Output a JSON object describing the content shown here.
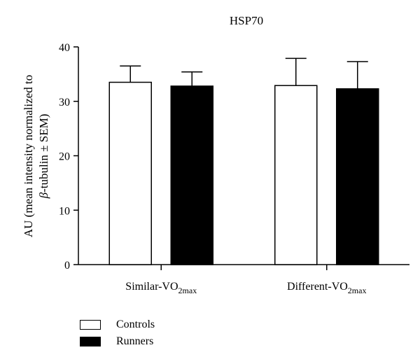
{
  "chart_data": {
    "type": "bar",
    "title": "HSP70",
    "ylabel_line1": "AU (mean intensity normalized to",
    "ylabel_line2_prefix": "β",
    "ylabel_line2_rest": "-tubulin ± SEM)",
    "ylim": [
      0,
      40
    ],
    "yticks": [
      0,
      10,
      20,
      30,
      40
    ],
    "categories": [
      {
        "base": "Similar-VO",
        "sub": "2max"
      },
      {
        "base": "Different-VO",
        "sub": "2max"
      }
    ],
    "series": [
      {
        "name": "Controls",
        "color": "#ffffff",
        "values": [
          33.5,
          32.9
        ],
        "errors": [
          3.0,
          5.0
        ]
      },
      {
        "name": "Runners",
        "color": "#000000",
        "values": [
          32.8,
          32.3
        ],
        "errors": [
          2.6,
          5.0
        ]
      }
    ],
    "grid": false,
    "legend_position": "bottom-left"
  }
}
